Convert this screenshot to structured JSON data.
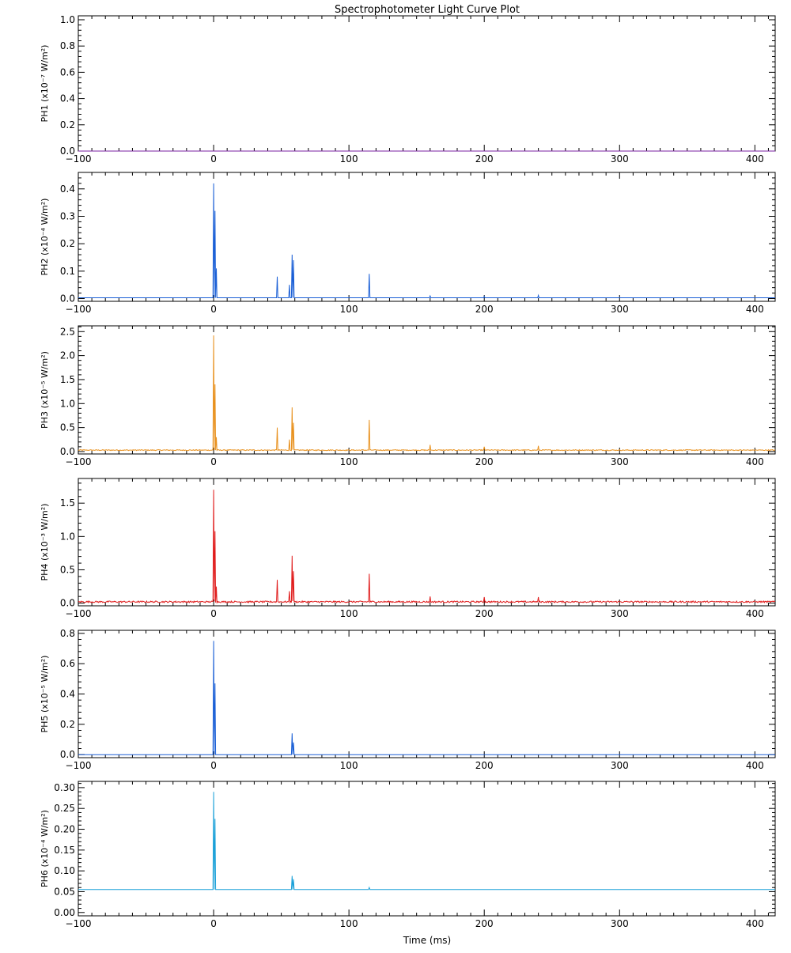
{
  "chart_data": {
    "type": "line",
    "title": "Spectrophotometer Light Curve Plot",
    "xlabel": "Time (ms)",
    "xlim": [
      -100,
      415
    ],
    "x_ticks": [
      -100,
      0,
      100,
      200,
      300,
      400
    ],
    "x_tick_labels": [
      "−100",
      "0",
      "100",
      "200",
      "300",
      "400"
    ],
    "grid": false,
    "panels": [
      {
        "name": "PH1",
        "ylabel": "PH1   (x10⁻⁷ W/m²)",
        "ylim": [
          0,
          1.03
        ],
        "y_ticks": [
          0,
          0.2,
          0.4,
          0.6,
          0.8,
          1.0
        ],
        "y_tick_labels": [
          "0.0",
          "0.2",
          "0.4",
          "0.6",
          "0.8",
          "1.0"
        ],
        "color": "#7a1fa2",
        "baseline": 0.0,
        "noise": 0.0,
        "peaks": []
      },
      {
        "name": "PH2",
        "ylabel": "PH2   (x10⁻⁴ W/m²)",
        "ylim": [
          -0.01,
          0.46
        ],
        "y_ticks": [
          0,
          0.1,
          0.2,
          0.3,
          0.4
        ],
        "y_tick_labels": [
          "0.0",
          "0.1",
          "0.2",
          "0.3",
          "0.4"
        ],
        "color": "#1a5fd6",
        "baseline": 0.003,
        "noise": 0.0,
        "peaks": [
          {
            "t": 0,
            "y": 0.42
          },
          {
            "t": 1,
            "y": 0.32
          },
          {
            "t": 2,
            "y": 0.11
          },
          {
            "t": 47,
            "y": 0.08
          },
          {
            "t": 56,
            "y": 0.05
          },
          {
            "t": 58,
            "y": 0.16
          },
          {
            "t": 59,
            "y": 0.14
          },
          {
            "t": 115,
            "y": 0.09
          },
          {
            "t": 160,
            "y": 0.01
          },
          {
            "t": 200,
            "y": 0.008
          },
          {
            "t": 240,
            "y": 0.012
          }
        ]
      },
      {
        "name": "PH3",
        "ylabel": "PH3   (x10⁻⁵ W/m²)",
        "ylim": [
          -0.05,
          2.62
        ],
        "y_ticks": [
          0,
          0.5,
          1.0,
          1.5,
          2.0,
          2.5
        ],
        "y_tick_labels": [
          "0.0",
          "0.5",
          "1.0",
          "1.5",
          "2.0",
          "2.5"
        ],
        "color": "#e8901c",
        "baseline": 0.03,
        "noise": 0.01,
        "peaks": [
          {
            "t": 0,
            "y": 2.42
          },
          {
            "t": 1,
            "y": 1.4
          },
          {
            "t": 2,
            "y": 0.3
          },
          {
            "t": 47,
            "y": 0.5
          },
          {
            "t": 56,
            "y": 0.25
          },
          {
            "t": 58,
            "y": 0.92
          },
          {
            "t": 59,
            "y": 0.6
          },
          {
            "t": 115,
            "y": 0.66
          },
          {
            "t": 160,
            "y": 0.14
          },
          {
            "t": 200,
            "y": 0.1
          },
          {
            "t": 240,
            "y": 0.12
          }
        ]
      },
      {
        "name": "PH4",
        "ylabel": "PH4   (x10⁻³ W/m²)",
        "ylim": [
          -0.04,
          1.87
        ],
        "y_ticks": [
          0,
          0.5,
          1.0,
          1.5
        ],
        "y_tick_labels": [
          "0.0",
          "0.5",
          "1.0",
          "1.5"
        ],
        "color": "#e01b1b",
        "baseline": 0.02,
        "noise": 0.012,
        "peaks": [
          {
            "t": 0,
            "y": 1.7
          },
          {
            "t": 1,
            "y": 1.08
          },
          {
            "t": 2,
            "y": 0.25
          },
          {
            "t": 47,
            "y": 0.35
          },
          {
            "t": 56,
            "y": 0.18
          },
          {
            "t": 58,
            "y": 0.71
          },
          {
            "t": 59,
            "y": 0.48
          },
          {
            "t": 115,
            "y": 0.44
          },
          {
            "t": 160,
            "y": 0.1
          },
          {
            "t": 200,
            "y": 0.09
          },
          {
            "t": 240,
            "y": 0.09
          }
        ]
      },
      {
        "name": "PH5",
        "ylabel": "PH5   (x10⁻⁵ W/m²)",
        "ylim": [
          -0.02,
          0.82
        ],
        "y_ticks": [
          0,
          0.2,
          0.4,
          0.6,
          0.8
        ],
        "y_tick_labels": [
          "0.0",
          "0.2",
          "0.4",
          "0.6",
          "0.8"
        ],
        "color": "#1a5fd6",
        "baseline": 0.0,
        "noise": 0.0,
        "peaks": [
          {
            "t": 0,
            "y": 0.75
          },
          {
            "t": 1,
            "y": 0.47
          },
          {
            "t": 58,
            "y": 0.14
          },
          {
            "t": 59,
            "y": 0.08
          }
        ]
      },
      {
        "name": "PH6",
        "ylabel": "PH6   (x10⁻⁴ W/m²)",
        "ylim": [
          -0.008,
          0.315
        ],
        "y_ticks": [
          0,
          0.05,
          0.1,
          0.15,
          0.2,
          0.25,
          0.3
        ],
        "y_tick_labels": [
          "0.00",
          "0.05",
          "0.10",
          "0.15",
          "0.20",
          "0.25",
          "0.30"
        ],
        "color": "#1aa0d8",
        "baseline": 0.055,
        "noise": 0.0,
        "peaks": [
          {
            "t": 0,
            "y": 0.29
          },
          {
            "t": 1,
            "y": 0.225
          },
          {
            "t": 58,
            "y": 0.088
          },
          {
            "t": 59,
            "y": 0.08
          },
          {
            "t": 115,
            "y": 0.06
          }
        ]
      }
    ]
  }
}
